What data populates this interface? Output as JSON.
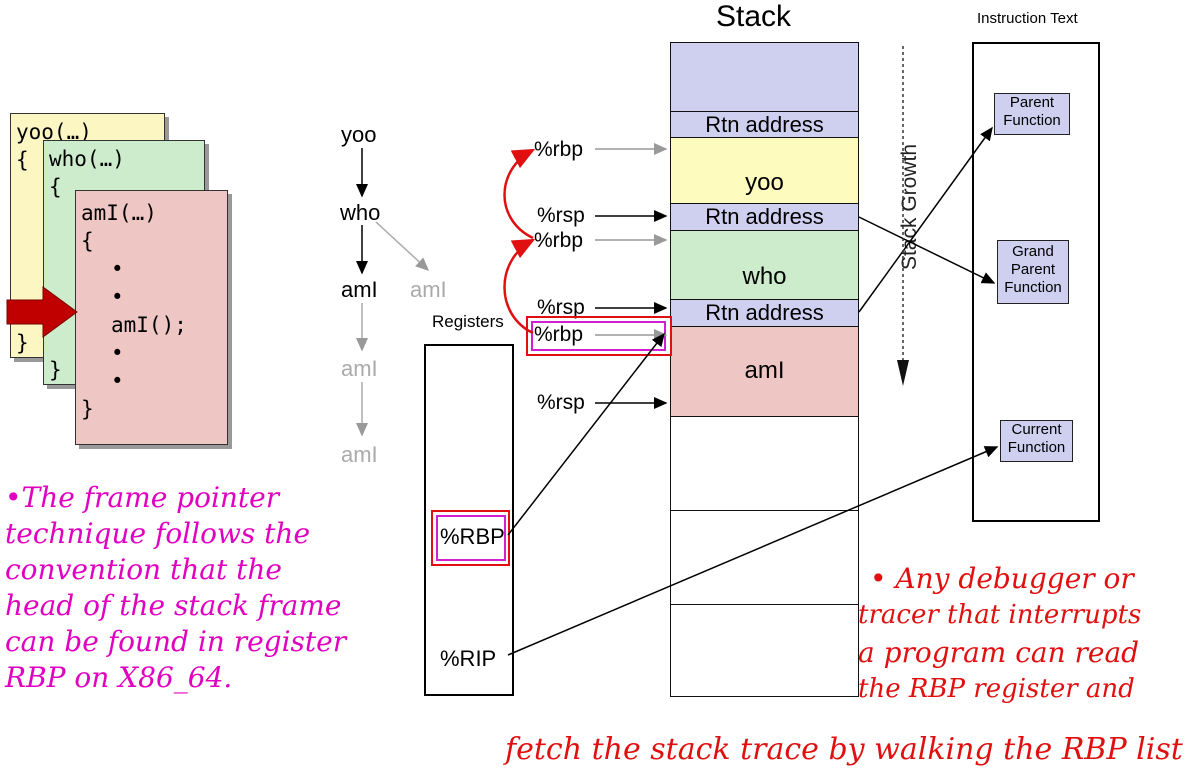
{
  "code_cards": {
    "yoo": {
      "line1": "yoo(…)",
      "line2": "{",
      "line3": "}"
    },
    "who": {
      "line1": "who(…)",
      "line2": "{",
      "line3": "}"
    },
    "aml": {
      "line1": "amI(…)",
      "line2": "{",
      "bullet": "•",
      "call": "amI();",
      "close": "}"
    }
  },
  "call_tree": {
    "yoo": "yoo",
    "who": "who",
    "aml_main": "amI",
    "aml_side": "amI",
    "aml_2": "amI",
    "aml_3": "amI"
  },
  "registers": {
    "title": "Registers",
    "rbp": "%RBP",
    "rip": "%RIP"
  },
  "stack": {
    "title": "Stack",
    "rtn1": "Rtn address",
    "yoo": "yoo",
    "rtn2": "Rtn address",
    "who": "who",
    "rtn3": "Rtn address",
    "aml": "amI"
  },
  "pointer_labels": {
    "rbp1": "%rbp",
    "rsp1": "%rsp",
    "rbp2": "%rbp",
    "rsp2": "%rsp",
    "rbp3": "%rbp",
    "rsp3": "%rsp"
  },
  "growth_label": "Stack Growth",
  "instruction_text": {
    "title": "Instruction Text",
    "parent": [
      "Parent",
      "Function"
    ],
    "grand": [
      "Grand",
      "Parent",
      "Function"
    ],
    "current": [
      "Current",
      "Function"
    ]
  },
  "notes": {
    "left": [
      "•The frame pointer",
      "technique follows the",
      "convention that the",
      "head of the stack frame",
      "can be found in register",
      "RBP on X86_64."
    ],
    "right": [
      "• Any debugger or",
      "tracer that interrupts",
      "a program can read",
      "the RBP register and"
    ],
    "bottom": "fetch the stack trace by walking the RBP list"
  },
  "colors": {
    "stack_blue": "#cfd0f0",
    "stack_yellow": "#fdfbbd",
    "stack_green": "#cdeccb",
    "stack_pink": "#eec7c4",
    "highlight_red": "#e01010",
    "highlight_magenta": "#d020d0",
    "note_magenta": "#e000c0",
    "note_red": "#e01010"
  }
}
